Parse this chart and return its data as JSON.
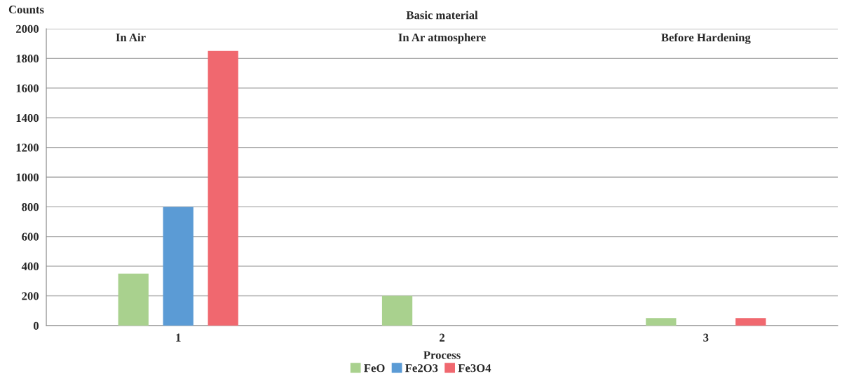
{
  "chart_data": {
    "type": "bar",
    "title": "Basic material",
    "xlabel": "Process",
    "ylabel": "Counts",
    "categories": [
      "1",
      "2",
      "3"
    ],
    "series": [
      {
        "name": "FeO",
        "color": "#a9d18e",
        "values": [
          350,
          200,
          50
        ]
      },
      {
        "name": "Fe2O3",
        "color": "#5b9bd5",
        "values": [
          800,
          null,
          null
        ]
      },
      {
        "name": "Fe3O4",
        "color": "#f0686f",
        "values": [
          1850,
          null,
          50
        ]
      }
    ],
    "annotations": [
      "In Air",
      "In Ar atmosphere",
      "Before Hardening"
    ],
    "ylim": [
      0,
      2000
    ],
    "yticks": [
      0,
      200,
      400,
      600,
      800,
      1000,
      1200,
      1400,
      1600,
      1800,
      2000
    ],
    "grid": "y",
    "legend": "bottom"
  }
}
